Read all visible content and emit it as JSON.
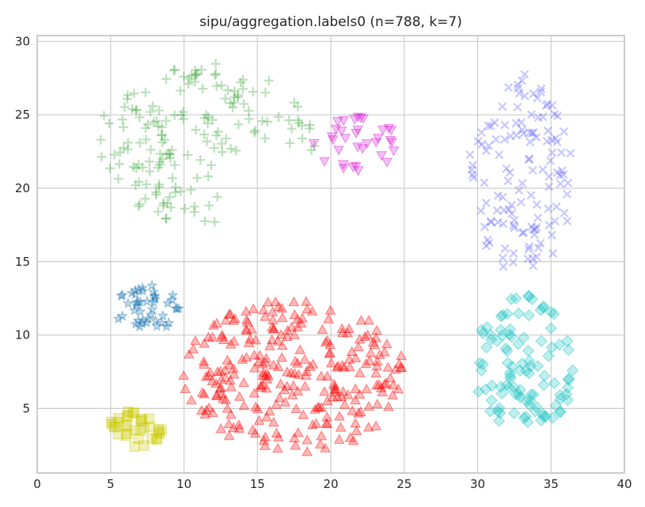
{
  "chart_data": {
    "type": "scatter",
    "title": "sipu/aggregation.labels0 (n=788, k=7)",
    "xlabel": "",
    "ylabel": "",
    "xlim": [
      0,
      40
    ],
    "ylim": [
      0.6,
      30.4
    ],
    "x_ticks": [
      "0",
      "5",
      "10",
      "15",
      "20",
      "25",
      "30",
      "35",
      "40"
    ],
    "y_ticks": [
      "5",
      "10",
      "15",
      "20",
      "25",
      "30"
    ],
    "grid": true,
    "legend": "none",
    "clusters": [
      {
        "label": "0",
        "marker": "star",
        "color": "#1f77b4",
        "count": 45,
        "center": [
          7.5,
          11.8
        ],
        "radius": [
          2.2,
          1.7
        ],
        "shape": "ellipse"
      },
      {
        "label": "1",
        "marker": "triangle-up",
        "color": "#ff0000",
        "count": 273,
        "center": [
          17.5,
          7.2
        ],
        "radius": [
          7.6,
          5.2
        ],
        "shape": "ellipse"
      },
      {
        "label": "2",
        "marker": "plus",
        "color": "#2ca02c",
        "count": 170,
        "center": [
          11.5,
          23.0
        ],
        "radius": [
          7.5,
          5.5
        ],
        "shape": "crescent"
      },
      {
        "label": "3",
        "marker": "triangle-down",
        "color": "#d61ad6",
        "count": 34,
        "center": [
          21.5,
          23.0
        ],
        "radius": [
          3.0,
          2.0
        ],
        "shape": "ellipse"
      },
      {
        "label": "4",
        "marker": "x",
        "color": "#5555ff",
        "count": 130,
        "center": [
          33.0,
          21.0
        ],
        "radius": [
          3.6,
          6.8
        ],
        "shape": "ellipse"
      },
      {
        "label": "5",
        "marker": "diamond",
        "color": "#17c2c2",
        "count": 102,
        "center": [
          33.2,
          8.0
        ],
        "radius": [
          3.4,
          4.8
        ],
        "shape": "ellipse"
      },
      {
        "label": "6",
        "marker": "square",
        "color": "#c8c800",
        "count": 34,
        "center": [
          6.7,
          3.6
        ],
        "radius": [
          1.8,
          1.3
        ],
        "shape": "ellipse"
      }
    ]
  }
}
